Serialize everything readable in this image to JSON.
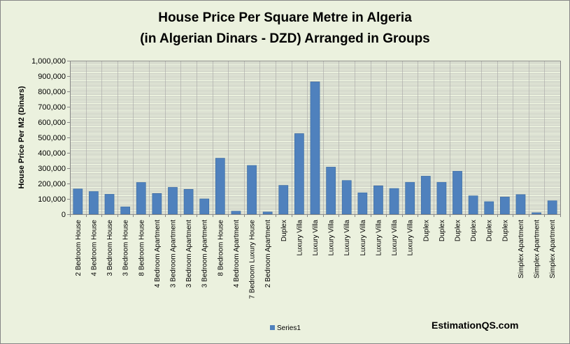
{
  "chart_data": {
    "type": "bar",
    "title": [
      "House Price Per Square Metre in Algeria",
      "(in Algerian Dinars - DZD) Arranged in Groups"
    ],
    "ylabel": "House Price Per M2 (Dinars)",
    "xlabel": "",
    "ylim": [
      0,
      1000000
    ],
    "yticks": [
      "0",
      "100,000",
      "200,000",
      "300,000",
      "400,000",
      "500,000",
      "600,000",
      "700,000",
      "800,000",
      "900,000",
      "1,000,000"
    ],
    "categories": [
      "2 Bedroom House",
      "4 Bedroom House",
      "3 Bedroom House",
      "3 Bedroom House",
      "8 Bedroom House",
      "4 Bedroom Apartment",
      "3 Bedroom Apartment",
      "3 Bedroom Apartment",
      "3 Bedroom Apartment",
      "8 Bedroom House",
      "4 Bedroom Apartment",
      "7 Bedroom Luxury House",
      "2 Bedroom Apartment",
      "Duplex",
      "Luxury Villa",
      "Luxury Villa",
      "Luxury Villa",
      "Luxury Villa",
      "Luxury Villa",
      "Luxury Villa",
      "Luxury Villa",
      "Luxury Villa",
      "Duplex",
      "Duplex",
      "Duplex",
      "Duplex",
      "Duplex",
      "Duplex",
      "Simplex Apartment",
      "Simplex Apartment",
      "Simplex Apartment"
    ],
    "series": [
      {
        "name": "Series1",
        "color": "#4f81bd",
        "values": [
          165000,
          148000,
          130000,
          48000,
          207000,
          135000,
          175000,
          162000,
          100000,
          365000,
          20000,
          318000,
          15000,
          188000,
          525000,
          862000,
          307000,
          220000,
          140000,
          185000,
          168000,
          208000,
          248000,
          208000,
          280000,
          120000,
          82000,
          112000,
          128000,
          10000,
          88000
        ]
      }
    ],
    "grid": true,
    "legend": "bottom-left",
    "plot_background": "#ebf1de",
    "grid_color": "#a6a6a6"
  },
  "watermark": "EstimationQS.com"
}
